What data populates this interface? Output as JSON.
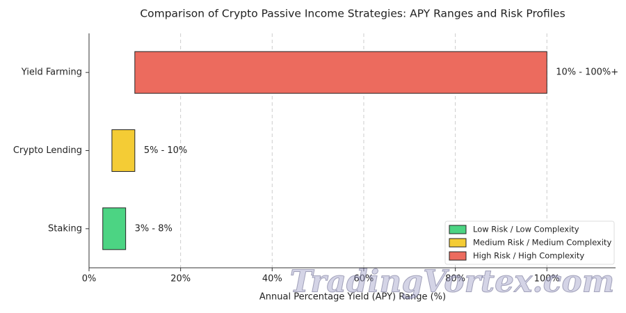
{
  "chart_data": {
    "type": "range-bar",
    "title": "Comparison of Crypto Passive Income Strategies: APY Ranges and Risk Profiles",
    "x_label": "Annual Percentage Yield (APY) Range (%)",
    "categories": [
      "Staking",
      "Crypto Lending",
      "Yield Farming"
    ],
    "ranges": [
      [
        3,
        8
      ],
      [
        5,
        10
      ],
      [
        10,
        100
      ]
    ],
    "value_labels": [
      "3% - 8%",
      "5% - 10%",
      "10% - 100%+"
    ],
    "legend": [
      {
        "name": "Low Risk / Low Complexity",
        "color": "#4cd483"
      },
      {
        "name": "Medium Risk / Medium Complexity",
        "color": "#f4cc35"
      },
      {
        "name": "High Risk / High Complexity",
        "color": "#ec6b5e"
      }
    ],
    "legend_position": "lower right",
    "xlim": [
      0,
      115
    ],
    "xticks": [
      {
        "value": 0,
        "label": "0%"
      },
      {
        "value": 20,
        "label": "20%"
      },
      {
        "value": 40,
        "label": "40%"
      },
      {
        "value": 60,
        "label": "60%"
      },
      {
        "value": 80,
        "label": "80%"
      },
      {
        "value": 100,
        "label": "100%"
      }
    ],
    "grid": true,
    "watermark": "TradingVortex.com"
  }
}
